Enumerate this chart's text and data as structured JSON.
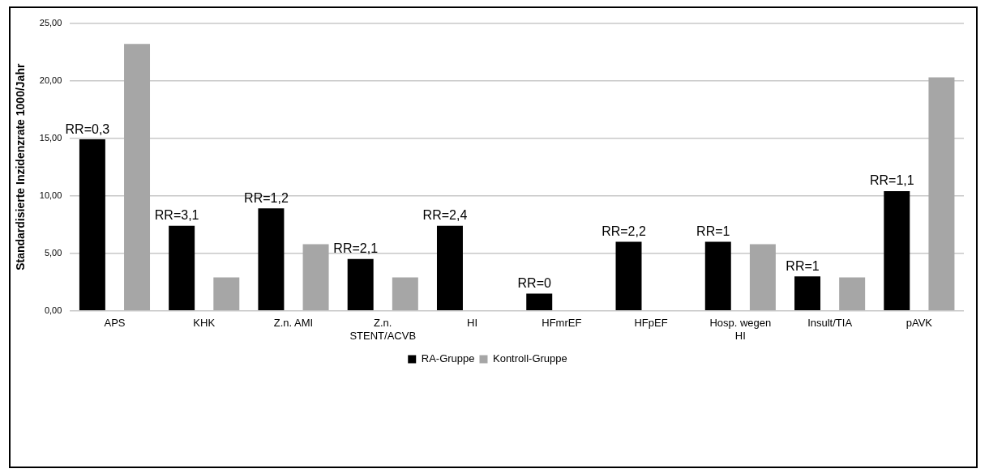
{
  "chart_data": {
    "type": "bar",
    "ylabel": "Standardisierte Inzidenzrate 1000/Jahr",
    "categories": [
      "APS",
      "KHK",
      "Z.n. AMI",
      "Z.n. STENT/ACVB",
      "HI",
      "HFmrEF",
      "HFpEF",
      "Hosp. wegen HI",
      "Insult/TIA",
      "pAVK"
    ],
    "series": [
      {
        "name": "RA-Gruppe",
        "color": "#000000",
        "values": [
          14.9,
          7.4,
          8.9,
          4.5,
          7.4,
          1.5,
          6.0,
          6.0,
          3.0,
          10.4
        ]
      },
      {
        "name": "Kontroll-Gruppe",
        "color": "#a6a6a6",
        "values": [
          23.2,
          2.9,
          5.8,
          2.9,
          null,
          null,
          null,
          5.8,
          2.9,
          20.3
        ]
      }
    ],
    "ylim": [
      0,
      25
    ],
    "yticks": [
      {
        "value": 0,
        "label": "0,00"
      },
      {
        "value": 5,
        "label": "5,00"
      },
      {
        "value": 10,
        "label": "10,00"
      },
      {
        "value": 15,
        "label": "15,00"
      },
      {
        "value": 20,
        "label": "20,00"
      },
      {
        "value": 25,
        "label": "25,00"
      }
    ],
    "annotations": [
      "RR=0,3",
      "RR=3,1",
      "RR=1,2",
      "RR=2,1",
      "RR=2,4",
      "RR=0",
      "RR=2,2",
      "RR=1",
      "RR=1",
      "RR=1,1"
    ],
    "grid": "y",
    "legend": "bottom"
  }
}
